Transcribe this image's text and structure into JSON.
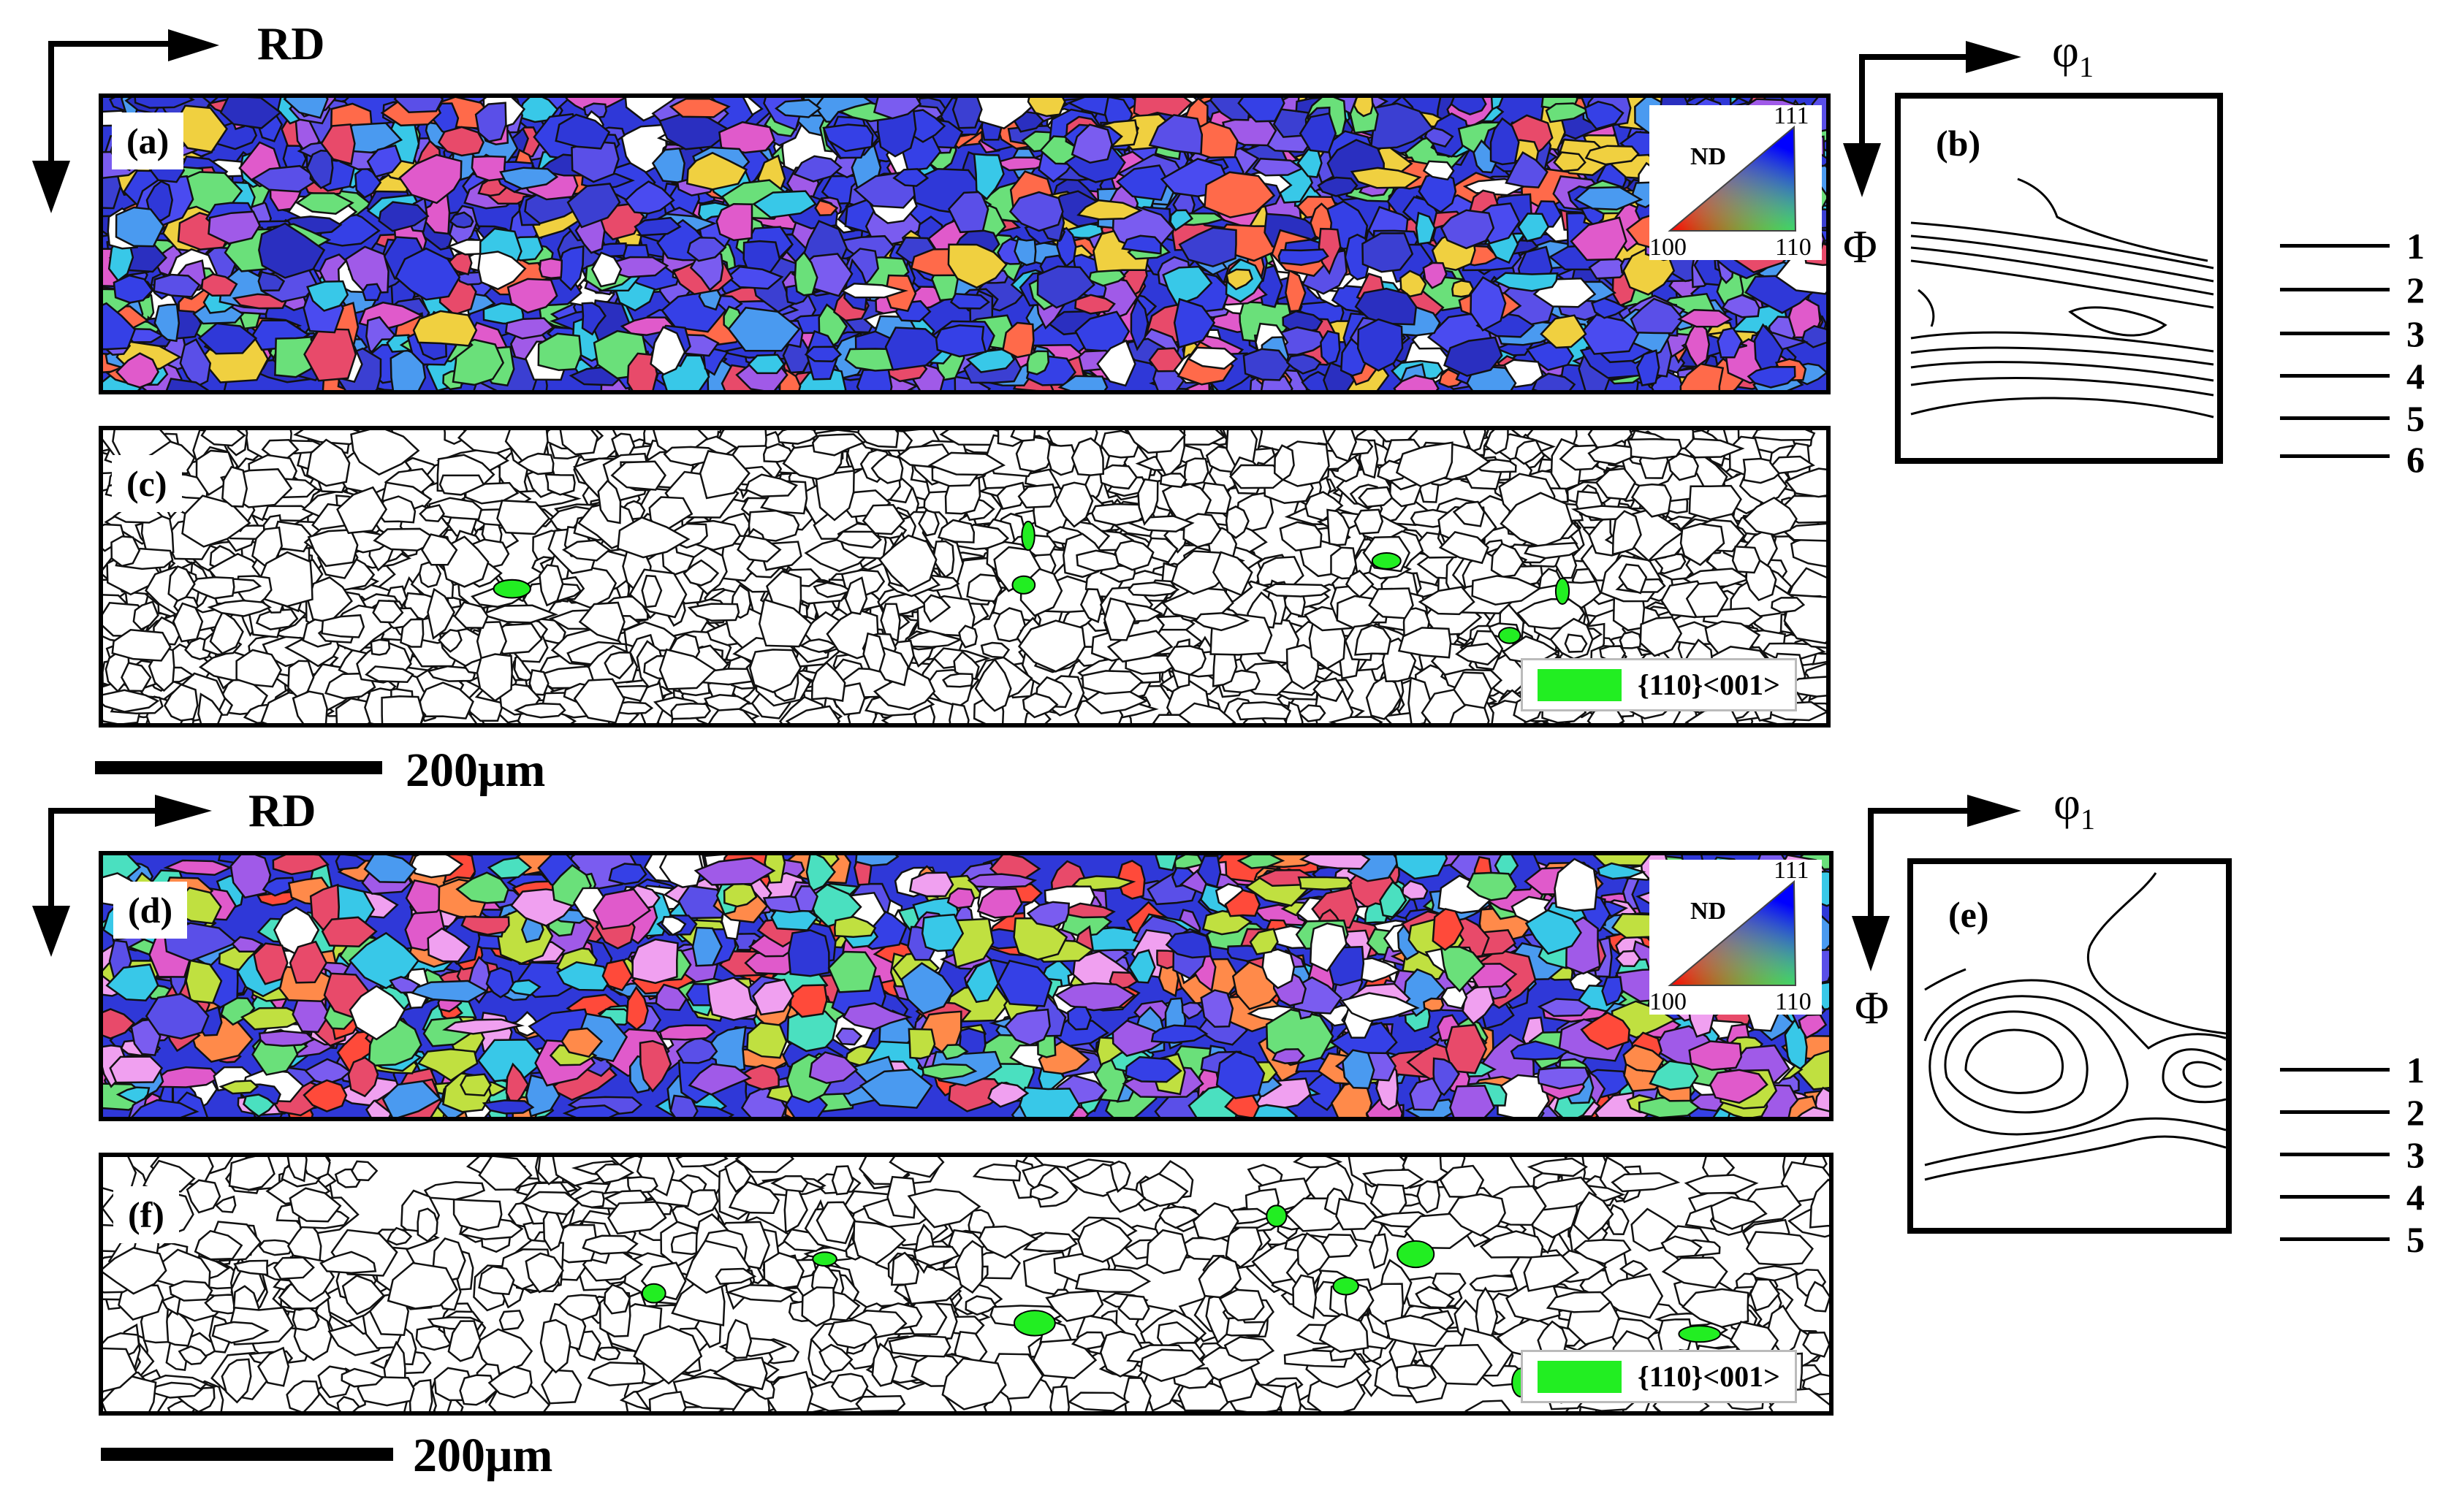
{
  "top_section": {
    "direction_label": "RD",
    "ebsd_map": {
      "label": "(a)"
    },
    "ipf_legend": {
      "nd": "ND",
      "corner_111": "111",
      "corner_100": "100",
      "corner_110": "110"
    },
    "boundary_map": {
      "label": "(c)",
      "legend_text": "{110}<001>",
      "legend_color": "#22ee22"
    },
    "odf": {
      "label": "(b)",
      "x_axis": "φ",
      "x_axis_sub": "1",
      "y_axis": "Φ",
      "levels": [
        "1",
        "2",
        "3",
        "4",
        "5",
        "6"
      ]
    },
    "scale_bar": "200μm"
  },
  "bottom_section": {
    "direction_label": "RD",
    "ebsd_map": {
      "label": "(d)"
    },
    "ipf_legend": {
      "nd": "ND",
      "corner_111": "111",
      "corner_100": "100",
      "corner_110": "110"
    },
    "boundary_map": {
      "label": "(f)",
      "legend_text": "{110}<001>",
      "legend_color": "#22ee22"
    },
    "odf": {
      "label": "(e)",
      "x_axis": "φ",
      "x_axis_sub": "1",
      "y_axis": "Φ",
      "levels": [
        "1",
        "2",
        "3",
        "4",
        "5"
      ]
    },
    "scale_bar": "200μm"
  },
  "colors": {
    "dominant_orientation_blue": "#2f38d8",
    "goss_green": "#22ee22"
  }
}
